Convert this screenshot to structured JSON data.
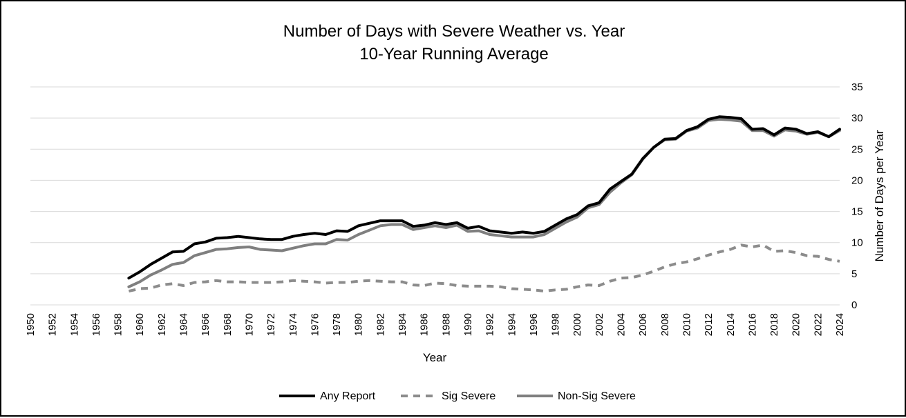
{
  "chart_data": {
    "type": "line",
    "title": "Number of Days with Severe Weather vs. Year",
    "subtitle": "10-Year Running Average",
    "xlabel": "Year",
    "ylabel": "Number of Days per Year",
    "xlim": [
      1950,
      2024
    ],
    "ylim": [
      0,
      35
    ],
    "x_ticks": [
      1950,
      1952,
      1954,
      1956,
      1958,
      1960,
      1962,
      1964,
      1966,
      1968,
      1970,
      1972,
      1974,
      1976,
      1978,
      1980,
      1982,
      1984,
      1986,
      1988,
      1990,
      1992,
      1994,
      1996,
      1998,
      2000,
      2002,
      2004,
      2006,
      2008,
      2010,
      2012,
      2014,
      2016,
      2018,
      2020,
      2022,
      2024
    ],
    "y_ticks": [
      0,
      5,
      10,
      15,
      20,
      25,
      30,
      35
    ],
    "grid": "horizontal",
    "legend_position": "bottom",
    "x": [
      1959,
      1960,
      1961,
      1962,
      1963,
      1964,
      1965,
      1966,
      1967,
      1968,
      1969,
      1970,
      1971,
      1972,
      1973,
      1974,
      1975,
      1976,
      1977,
      1978,
      1979,
      1980,
      1981,
      1982,
      1983,
      1984,
      1985,
      1986,
      1987,
      1988,
      1989,
      1990,
      1991,
      1992,
      1993,
      1994,
      1995,
      1996,
      1997,
      1998,
      1999,
      2000,
      2001,
      2002,
      2003,
      2004,
      2005,
      2006,
      2007,
      2008,
      2009,
      2010,
      2011,
      2012,
      2013,
      2014,
      2015,
      2016,
      2017,
      2018,
      2019,
      2020,
      2021,
      2022,
      2023,
      2024
    ],
    "series": [
      {
        "name": "Any Report",
        "color": "#000000",
        "style": "solid",
        "values": [
          4.3,
          5.3,
          6.5,
          7.5,
          8.5,
          8.6,
          9.8,
          10.1,
          10.7,
          10.8,
          11.0,
          10.8,
          10.6,
          10.5,
          10.5,
          11.0,
          11.3,
          11.5,
          11.3,
          11.9,
          11.8,
          12.7,
          13.1,
          13.5,
          13.5,
          13.5,
          12.6,
          12.8,
          13.2,
          12.9,
          13.2,
          12.3,
          12.6,
          11.9,
          11.7,
          11.5,
          11.7,
          11.5,
          11.8,
          12.8,
          13.8,
          14.5,
          15.9,
          16.4,
          18.6,
          19.8,
          21.0,
          23.5,
          25.3,
          26.6,
          26.7,
          28.0,
          28.6,
          29.8,
          30.2,
          30.1,
          29.9,
          28.2,
          28.3,
          27.3,
          28.4,
          28.2,
          27.5,
          27.8,
          27.0,
          28.2
        ]
      },
      {
        "name": "Sig Severe",
        "color": "#8c8c8c",
        "style": "dashed",
        "values": [
          2.2,
          2.6,
          2.7,
          3.2,
          3.4,
          3.1,
          3.6,
          3.7,
          3.9,
          3.7,
          3.7,
          3.6,
          3.6,
          3.6,
          3.7,
          3.9,
          3.8,
          3.7,
          3.5,
          3.6,
          3.6,
          3.8,
          3.9,
          3.8,
          3.7,
          3.7,
          3.2,
          3.1,
          3.5,
          3.4,
          3.1,
          3.0,
          3.0,
          3.0,
          2.9,
          2.6,
          2.5,
          2.4,
          2.2,
          2.4,
          2.5,
          2.9,
          3.2,
          3.1,
          3.8,
          4.3,
          4.4,
          4.8,
          5.4,
          6.1,
          6.6,
          6.9,
          7.4,
          8.0,
          8.5,
          8.9,
          9.6,
          9.3,
          9.6,
          8.6,
          8.7,
          8.4,
          7.9,
          7.8,
          7.3,
          7.0
        ]
      },
      {
        "name": "Non-Sig Severe",
        "color": "#7f7f7f",
        "style": "solid",
        "values": [
          2.9,
          3.7,
          4.8,
          5.6,
          6.5,
          6.8,
          7.9,
          8.4,
          8.9,
          9.0,
          9.2,
          9.3,
          8.9,
          8.8,
          8.7,
          9.1,
          9.5,
          9.8,
          9.8,
          10.5,
          10.4,
          11.3,
          12.0,
          12.7,
          12.9,
          12.9,
          12.1,
          12.4,
          12.7,
          12.4,
          12.8,
          11.8,
          11.9,
          11.3,
          11.1,
          10.9,
          10.9,
          10.9,
          11.3,
          12.3,
          13.3,
          14.1,
          15.6,
          16.1,
          18.1,
          19.6,
          20.9,
          23.4,
          25.3,
          26.5,
          26.6,
          27.9,
          28.4,
          29.6,
          29.8,
          29.7,
          29.5,
          28.0,
          28.0,
          27.1,
          28.1,
          27.9,
          27.4,
          27.7,
          27.0,
          28.0
        ]
      }
    ]
  }
}
